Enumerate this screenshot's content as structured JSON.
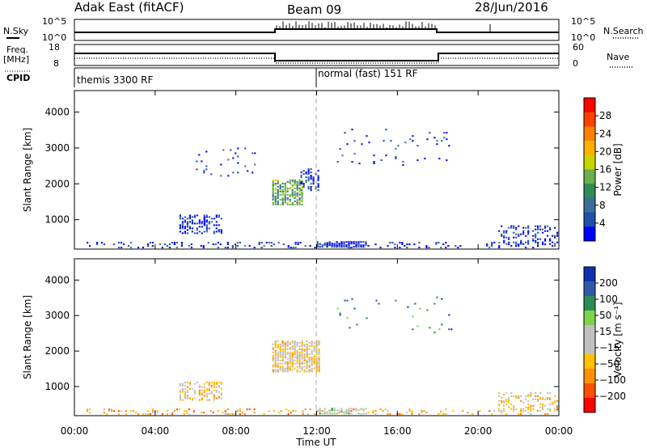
{
  "header": {
    "title": "Adak East (fitACF)",
    "beam": "Beam 09",
    "date": "28/Jun/2016"
  },
  "nsky_panel": {
    "left_label": "N.Sky",
    "right_label": "N.Search",
    "left_tick_top": "10^5",
    "left_tick_bottom": "10^0",
    "right_tick_top": "10^5",
    "right_tick_bottom": "10^0"
  },
  "freq_panel": {
    "left_label_1": "Freq.",
    "left_label_2": "[MHz]",
    "right_label": "Nave",
    "left_tick_top": "18",
    "left_tick_bottom": "8",
    "right_tick_top": "60",
    "right_tick_bottom": "0"
  },
  "cpid_panel": {
    "label": "CPID",
    "program_1": "themis 3300 RF",
    "program_2": "normal (fast) 151 RF"
  },
  "colors": {
    "power_scale": [
      "#0000ff",
      "#1f4fa8",
      "#3a6e9a",
      "#2e8b57",
      "#6ab04c",
      "#c8d400",
      "#ffb000",
      "#ff8000",
      "#ff4000",
      "#ff0000"
    ],
    "velocity_scale": [
      "#ff0000",
      "#ff5000",
      "#ff9000",
      "#ffc000",
      "#c0c0c0",
      "#c0c0c0",
      "#7fd44a",
      "#2e8b57",
      "#2f5aa8",
      "#1030b0"
    ]
  },
  "chart_data": [
    {
      "type": "heatmap",
      "name": "power",
      "ylabel": "Slant Range [km]",
      "yticks": [
        "1000",
        "2000",
        "3000",
        "4000"
      ],
      "colorbar_label": "Power [dB]",
      "colorbar_ticks": [
        "4",
        "8",
        "12",
        "16",
        "20",
        "24",
        "28"
      ],
      "x_range_hours": [
        0,
        24
      ],
      "y_range_km": [
        180,
        4600
      ],
      "patches": [
        {
          "t0": 0.6,
          "t1": 24.0,
          "r0": 200,
          "r1": 350,
          "level": 1,
          "density": 0.22
        },
        {
          "t0": 5.2,
          "t1": 7.3,
          "r0": 600,
          "r1": 1100,
          "level": 1,
          "density": 0.5
        },
        {
          "t0": 9.8,
          "t1": 11.3,
          "r0": 1400,
          "r1": 2100,
          "level": 4,
          "density": 0.75
        },
        {
          "t0": 11.2,
          "t1": 12.1,
          "r0": 1800,
          "r1": 2400,
          "level": 1,
          "density": 0.5
        },
        {
          "t0": 12.0,
          "t1": 14.5,
          "r0": 220,
          "r1": 360,
          "level": 1,
          "density": 0.8
        },
        {
          "t0": 21.0,
          "t1": 24.0,
          "r0": 300,
          "r1": 800,
          "level": 1,
          "density": 0.35
        },
        {
          "t0": 13.0,
          "t1": 19.0,
          "r0": 2500,
          "r1": 3500,
          "level": 1,
          "density": 0.03
        },
        {
          "t0": 5.9,
          "t1": 9.0,
          "r0": 2200,
          "r1": 3000,
          "level": 1,
          "density": 0.05
        }
      ]
    },
    {
      "type": "heatmap",
      "name": "velocity",
      "ylabel": "Slant Range [km]",
      "yticks": [
        "1000",
        "2000",
        "3000",
        "4000"
      ],
      "colorbar_label": "Velocity [m s⁻¹]",
      "colorbar_ticks": [
        "200",
        "100",
        "50",
        "15",
        "−15",
        "−50",
        "−100",
        "−200"
      ],
      "x_range_hours": [
        0,
        24
      ],
      "y_range_km": [
        180,
        4600
      ],
      "patches": [
        {
          "t0": 0.6,
          "t1": 24.0,
          "r0": 200,
          "r1": 350,
          "level": 3,
          "density": 0.22
        },
        {
          "t0": 5.2,
          "t1": 7.3,
          "r0": 600,
          "r1": 1100,
          "level": 4,
          "density": 0.5
        },
        {
          "t0": 9.8,
          "t1": 12.1,
          "r0": 1400,
          "r1": 2300,
          "level": 4,
          "density": 0.75
        },
        {
          "t0": 12.0,
          "t1": 14.5,
          "r0": 220,
          "r1": 360,
          "level": 6,
          "density": 0.6
        },
        {
          "t0": 21.0,
          "t1": 24.0,
          "r0": 300,
          "r1": 800,
          "level": 4,
          "density": 0.35
        },
        {
          "t0": 13.0,
          "t1": 19.0,
          "r0": 2500,
          "r1": 3500,
          "level": 8,
          "density": 0.03
        }
      ]
    }
  ],
  "x_axis": {
    "ticks": [
      "00:00",
      "04:00",
      "08:00",
      "12:00",
      "16:00",
      "20:00",
      "00:00"
    ],
    "label": "Time UT"
  }
}
